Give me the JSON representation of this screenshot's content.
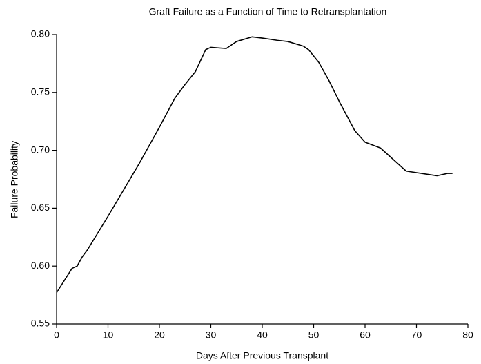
{
  "chart_data": {
    "type": "line",
    "title": "Graft Failure as a Function of Time to Retransplantation",
    "x_label": "Days After Previous Transplant",
    "y_label": "Failure Probability",
    "x": [
      0,
      3,
      4,
      5,
      6,
      10,
      14,
      16,
      20,
      23,
      25,
      27,
      29,
      30,
      33,
      35,
      38,
      40,
      43,
      45,
      48,
      49,
      51,
      53,
      55,
      58,
      60,
      63,
      68,
      74,
      75,
      76,
      77
    ],
    "values": [
      0.577,
      0.598,
      0.6,
      0.608,
      0.614,
      0.643,
      0.673,
      0.688,
      0.72,
      0.745,
      0.757,
      0.768,
      0.787,
      0.789,
      0.788,
      0.794,
      0.798,
      0.797,
      0.795,
      0.794,
      0.79,
      0.787,
      0.776,
      0.76,
      0.742,
      0.717,
      0.707,
      0.702,
      0.682,
      0.678,
      0.679,
      0.68,
      0.68
    ],
    "color": "#000000",
    "xlim": [
      0,
      80
    ],
    "xticks": [
      0,
      10,
      20,
      30,
      40,
      50,
      60,
      70,
      80
    ],
    "ylim": [
      0.55,
      0.8
    ],
    "yticks": [
      0.55,
      {
        "value": 0.6,
        "label": "0.60"
      },
      0.65,
      {
        "value": 0.7,
        "label": "0.70"
      },
      0.75,
      {
        "value": 0.8,
        "label": "0.80"
      }
    ]
  }
}
